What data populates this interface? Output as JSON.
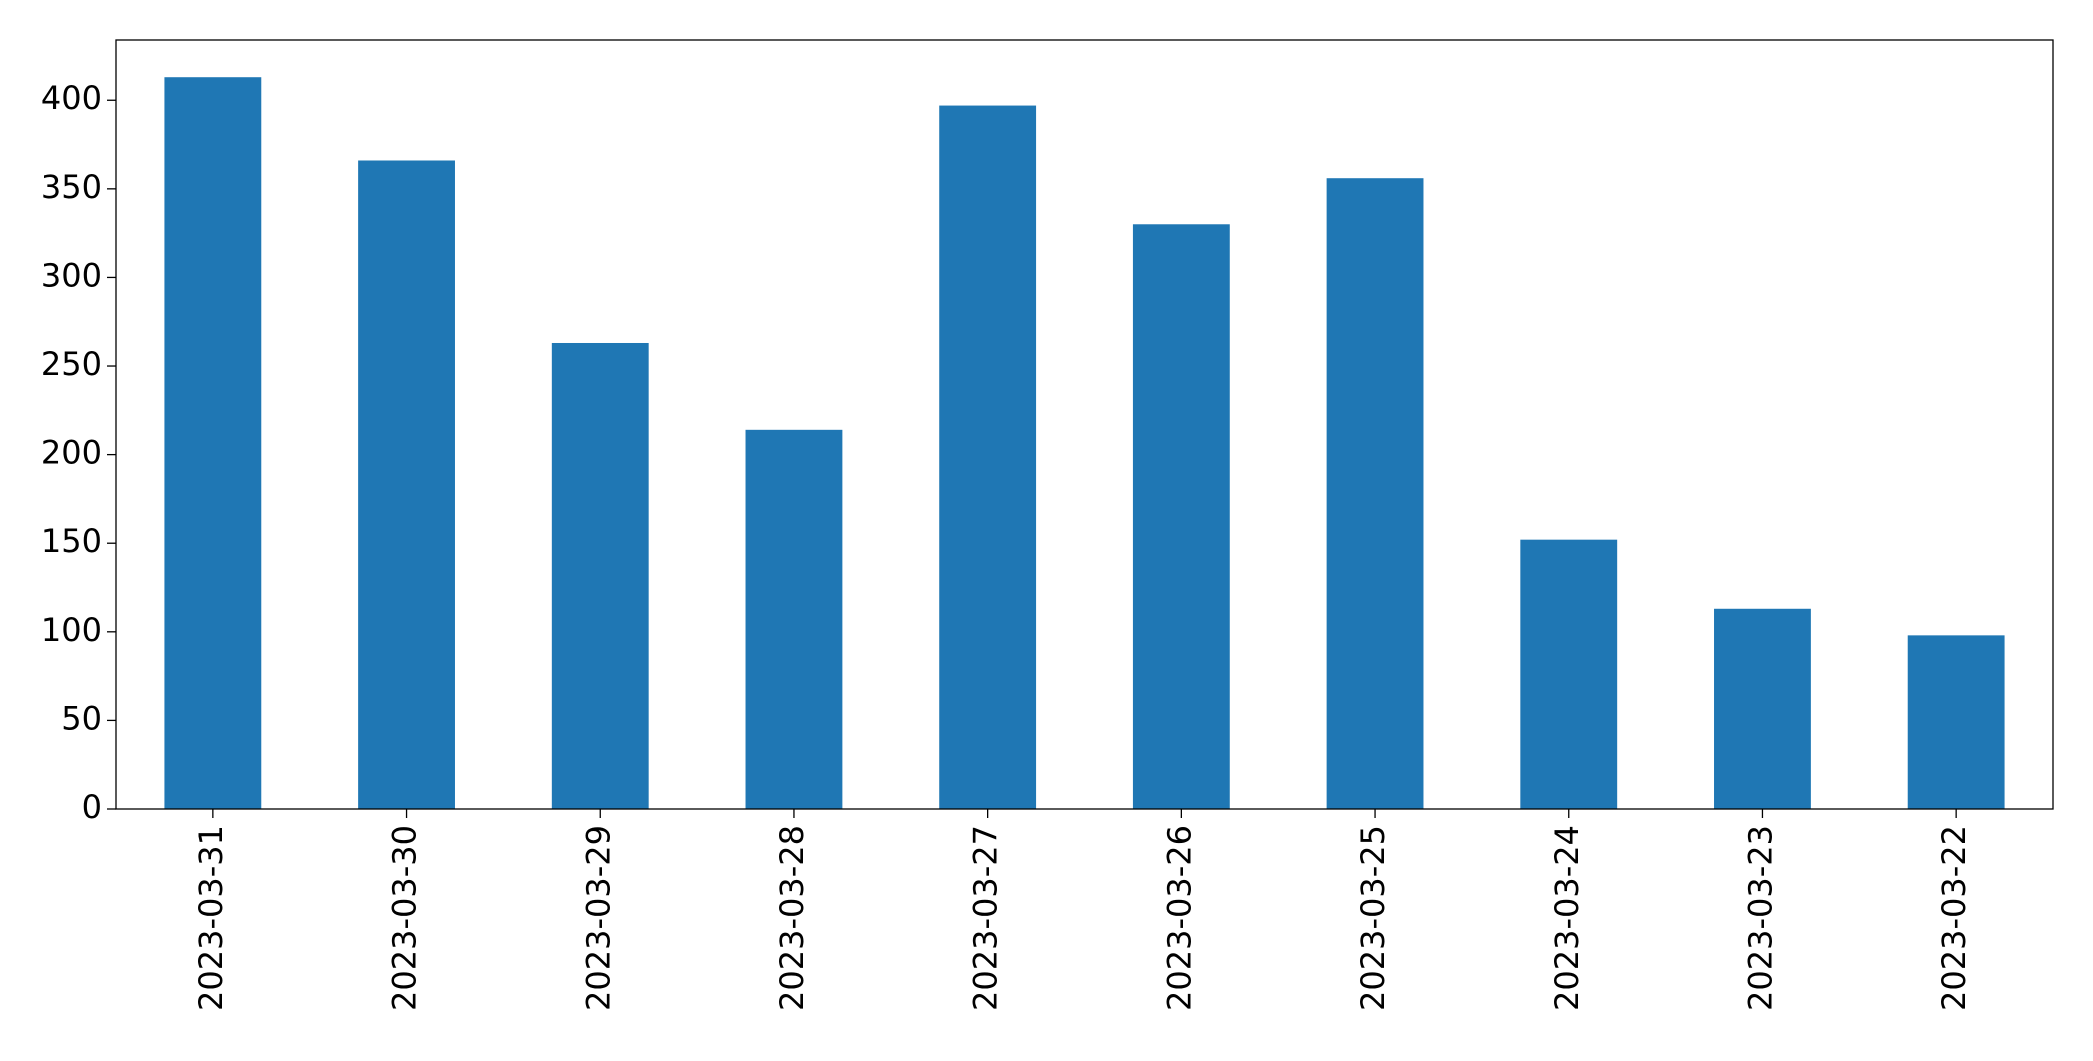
{
  "chart_data": {
    "type": "bar",
    "categories": [
      "2023-03-31",
      "2023-03-30",
      "2023-03-29",
      "2023-03-28",
      "2023-03-27",
      "2023-03-26",
      "2023-03-25",
      "2023-03-24",
      "2023-03-23",
      "2023-03-22"
    ],
    "values": [
      413,
      366,
      263,
      214,
      397,
      330,
      356,
      152,
      113,
      98
    ],
    "color": "#1f77b4",
    "ylim": [
      0,
      434
    ],
    "yticks": [
      0,
      50,
      100,
      150,
      200,
      250,
      300,
      350,
      400
    ],
    "grid": false
  }
}
